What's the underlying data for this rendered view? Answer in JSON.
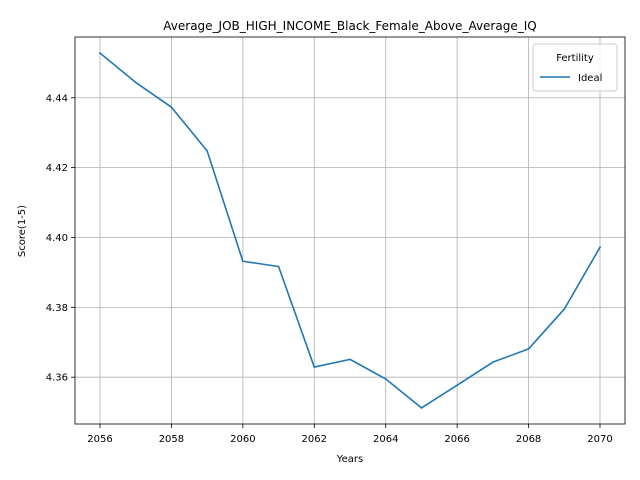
{
  "chart_data": {
    "type": "line",
    "title": "Average_JOB_HIGH_INCOME_Black_Female_Above_Average_IQ",
    "xlabel": "Years",
    "ylabel": "Score(1-5)",
    "x": [
      2056,
      2057,
      2058,
      2059,
      2060,
      2061,
      2062,
      2063,
      2064,
      2065,
      2066,
      2067,
      2068,
      2069,
      2070
    ],
    "series": [
      {
        "name": "Ideal",
        "color": "#1f77b4",
        "values": [
          4.4528,
          4.4444,
          4.4373,
          4.4248,
          4.3932,
          4.3917,
          4.3629,
          4.3651,
          4.3595,
          4.3512,
          4.3577,
          4.3643,
          4.3681,
          4.3795,
          4.3972
        ]
      }
    ],
    "xlim": [
      2055.3,
      2070.7
    ],
    "ylim": [
      4.3466,
      4.4574
    ],
    "xticks": [
      2056,
      2058,
      2060,
      2062,
      2064,
      2066,
      2068,
      2070
    ],
    "yticks": [
      4.36,
      4.38,
      4.4,
      4.42,
      4.44
    ],
    "ytick_labels": [
      "4.36",
      "4.38",
      "4.40",
      "4.42",
      "4.44"
    ],
    "grid": true,
    "legend": {
      "title": "Fertility",
      "placement": "top-right"
    }
  }
}
